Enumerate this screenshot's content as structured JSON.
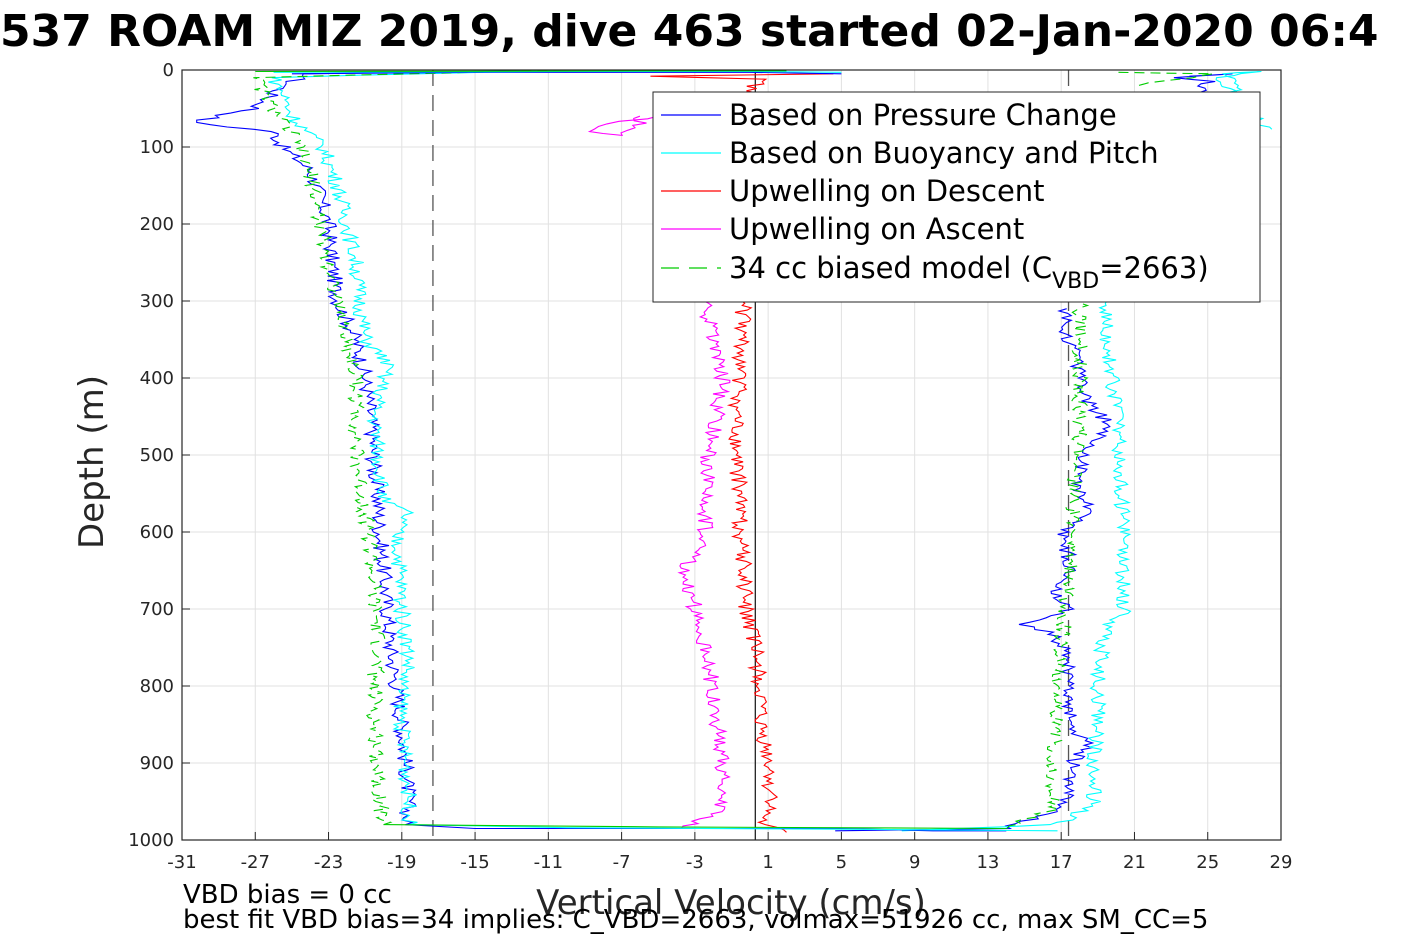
{
  "chart_data": {
    "type": "line",
    "title": "537 ROAM MIZ 2019, dive 463 started 02-Jan-2020 06:4",
    "xlabel": "Vertical Velocity (cm/s)",
    "ylabel": "Depth (m)",
    "xlim": [
      -31,
      29
    ],
    "ylim": [
      0,
      1000
    ],
    "y_reversed": true,
    "grid": true,
    "xticks": [
      -31,
      -27,
      -23,
      -19,
      -15,
      -11,
      -7,
      -3,
      1,
      5,
      9,
      13,
      17,
      21,
      25,
      29
    ],
    "yticks": [
      0,
      100,
      200,
      300,
      400,
      500,
      600,
      700,
      800,
      900,
      1000
    ],
    "legend_position": "top-right",
    "legend": [
      {
        "label": "Based on Pressure Change",
        "color": "#0000ff",
        "dash": "solid"
      },
      {
        "label": "Based on Buoyancy and Pitch",
        "color": "#00ffff",
        "dash": "solid"
      },
      {
        "label": "Upwelling on Descent",
        "color": "#ff0000",
        "dash": "solid"
      },
      {
        "label": "Upwelling on Ascent",
        "color": "#ff00ff",
        "dash": "solid"
      },
      {
        "label_pre": "34 cc biased model (C",
        "label_sub": "VBD",
        "label_post": "=2663)",
        "color": "#00cc00",
        "dash": "dashed"
      }
    ],
    "reference_lines": [
      {
        "x": -17.3,
        "style": "dashed",
        "color": "#555555"
      },
      {
        "x": 0.3,
        "style": "solid",
        "color": "#222222"
      },
      {
        "x": 17.4,
        "style": "dashed",
        "color": "#555555"
      }
    ],
    "series": [
      {
        "color": "#0000ff",
        "dash": "solid",
        "depth": [
          0,
          5,
          15,
          30,
          50,
          68,
          80,
          100,
          130,
          160,
          200,
          250,
          300,
          350,
          400,
          430,
          470,
          520,
          560,
          600,
          650,
          700,
          750,
          770,
          800,
          850,
          900,
          950,
          980
        ],
        "velocity": [
          -10,
          -24,
          -25,
          -26,
          -27,
          -30.5,
          -26,
          -25.5,
          -24,
          -23.5,
          -23,
          -22.8,
          -22.5,
          -21.5,
          -21,
          -20.8,
          -20.6,
          -20.5,
          -20.3,
          -20.2,
          -20,
          -19.8,
          -19.6,
          -19.5,
          -19.3,
          -19,
          -18.8,
          -18.6,
          -18.8
        ]
      },
      {
        "color": "#0000ff",
        "dash": "solid",
        "depth": [
          988,
          985,
          960,
          930,
          900,
          880,
          850,
          800,
          760,
          730,
          720,
          700,
          680,
          650,
          600,
          570,
          540,
          500,
          460,
          430,
          400,
          370,
          340,
          310
        ],
        "velocity": [
          5,
          14,
          17,
          17.6,
          17.6,
          18.5,
          17.6,
          17.4,
          17.3,
          16.5,
          15,
          17.5,
          16.5,
          17.5,
          17.2,
          18.5,
          18,
          18.2,
          19.5,
          18.5,
          18,
          17.8,
          17.2,
          17.3
        ]
      },
      {
        "color": "#0000ff",
        "dash": "solid",
        "depth": [
          35,
          15,
          10,
          5,
          8
        ],
        "velocity": [
          24.5,
          25,
          23.5,
          26,
          24
        ]
      },
      {
        "color": "#00ffff",
        "dash": "solid",
        "depth": [
          0,
          10,
          30,
          60,
          100,
          150,
          200,
          250,
          300,
          350,
          380,
          450,
          500,
          560,
          575,
          600,
          650,
          700,
          770,
          800,
          850,
          900,
          950,
          980
        ],
        "velocity": [
          -10,
          -26,
          -25.5,
          -25,
          -23.3,
          -22.5,
          -22,
          -21.5,
          -21.3,
          -21,
          -19.8,
          -20.5,
          -20.3,
          -20,
          -18.7,
          -19.3,
          -19.1,
          -19,
          -18.6,
          -19,
          -19,
          -18.8,
          -18.6,
          -18.6
        ]
      },
      {
        "color": "#00ffff",
        "dash": "solid",
        "depth": [
          988,
          980,
          950,
          900,
          850,
          800,
          760,
          720,
          700,
          650,
          600,
          550,
          500,
          450,
          400,
          350,
          300
        ],
        "velocity": [
          8,
          16.8,
          18.8,
          18.8,
          19,
          19,
          19.2,
          19.5,
          20.5,
          20.3,
          20.5,
          20.2,
          20.2,
          20,
          19.8,
          19.5,
          19.5
        ]
      },
      {
        "color": "#00ffff",
        "dash": "solid",
        "depth": [
          40,
          20,
          5,
          2,
          10,
          30,
          60,
          77
        ],
        "velocity": [
          25,
          27,
          26,
          27.5,
          25.5,
          26.5,
          27.5,
          28.5
        ]
      },
      {
        "color": "#00cc00",
        "dash": "dashed",
        "depth": [
          0,
          10,
          50,
          100,
          150,
          200,
          250,
          300,
          350,
          400,
          450,
          500,
          550,
          600,
          650,
          700,
          750,
          800,
          850,
          900,
          950,
          980
        ],
        "velocity": [
          -10,
          -27,
          -26,
          -24.5,
          -23.8,
          -23.5,
          -23,
          -22.5,
          -22,
          -21.5,
          -21.5,
          -21.5,
          -21.2,
          -20.8,
          -20.6,
          -20.5,
          -20.3,
          -20.5,
          -20.5,
          -20.3,
          -20.2,
          -20
        ]
      },
      {
        "color": "#00cc00",
        "dash": "dashed",
        "depth": [
          985,
          960,
          900,
          850,
          800,
          750,
          700,
          650,
          600,
          550,
          500,
          450,
          400,
          350,
          300
        ],
        "velocity": [
          14,
          16.5,
          16.6,
          16.7,
          16.8,
          17,
          17.2,
          17.5,
          17.6,
          17.7,
          17.9,
          18,
          18,
          18,
          18
        ]
      },
      {
        "color": "#00cc00",
        "dash": "dashed",
        "depth": [
          20,
          10,
          5,
          3
        ],
        "velocity": [
          21,
          24,
          25,
          20
        ]
      },
      {
        "color": "#ff0000",
        "dash": "solid",
        "depth": [
          5,
          8,
          12,
          30,
          60,
          300,
          350,
          400,
          450,
          500,
          550,
          600,
          650,
          700,
          750,
          800,
          850,
          900,
          950,
          980,
          990
        ],
        "velocity": [
          5,
          -5,
          0.5,
          0,
          -1,
          -0.3,
          -0.5,
          -0.5,
          -0.8,
          -0.8,
          -0.5,
          -0.5,
          -0.3,
          -0.2,
          0.3,
          0.5,
          0.5,
          1,
          1.2,
          0.5,
          2
        ]
      },
      {
        "color": "#ff00ff",
        "dash": "solid",
        "depth": [
          985,
          960,
          900,
          850,
          800,
          750,
          700,
          650,
          600,
          550,
          500,
          450,
          400,
          350,
          300
        ],
        "velocity": [
          -3.5,
          -1.5,
          -1.5,
          -1.8,
          -2,
          -2.5,
          -3,
          -3.5,
          -2.5,
          -2.3,
          -2.3,
          -1.8,
          -1.5,
          -2,
          -2.5
        ]
      },
      {
        "color": "#ff00ff",
        "dash": "solid",
        "depth": [
          60,
          70,
          80,
          85,
          75,
          60
        ],
        "velocity": [
          -5,
          -8,
          -9,
          -7,
          -6,
          -6
        ]
      }
    ],
    "bottom_crossing": [
      {
        "color": "#0000ff",
        "depth": [
          980,
          985,
          985,
          988,
          988
        ],
        "velocity": [
          -18.8,
          -15,
          5,
          10,
          14
        ]
      },
      {
        "color": "#00ffff",
        "depth": [
          980,
          984,
          986,
          988
        ],
        "velocity": [
          -18.6,
          -10,
          5,
          16.8
        ]
      },
      {
        "color": "#00cc00",
        "depth": [
          980,
          983,
          985
        ],
        "velocity": [
          -20,
          -5,
          14
        ]
      },
      {
        "color": "#ff00ff",
        "depth": [
          300,
          120
        ],
        "velocity": [
          -2.5,
          -4.8
        ]
      }
    ],
    "surface_crossing": [
      {
        "color": "#0000ff",
        "depth": [
          5,
          3,
          3,
          5
        ],
        "velocity": [
          -25,
          -15,
          0,
          5
        ]
      },
      {
        "color": "#00ffff",
        "depth": [
          3,
          2,
          2,
          3
        ],
        "velocity": [
          -26,
          -10,
          0,
          5
        ]
      },
      {
        "color": "#00cc00",
        "depth": [
          2,
          1
        ],
        "velocity": [
          -27,
          2
        ]
      }
    ]
  },
  "notes": {
    "line1": "VBD bias = 0 cc",
    "line2": "best fit VBD bias=34 implies: C_VBD=2663, volmax=51926 cc, max SM_CC=5"
  }
}
